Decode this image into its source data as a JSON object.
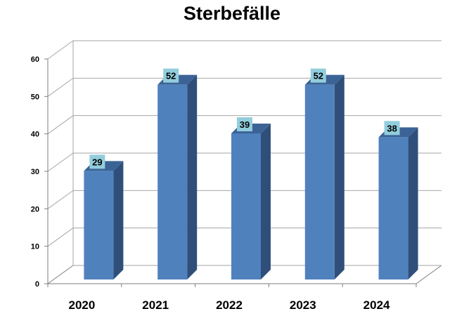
{
  "chart_data": {
    "type": "bar",
    "title": "Sterbefälle",
    "categories": [
      "2020",
      "2021",
      "2022",
      "2023",
      "2024"
    ],
    "values": [
      29,
      52,
      39,
      52,
      38
    ],
    "ylim": [
      0,
      60
    ],
    "yticks": [
      0,
      10,
      20,
      30,
      40,
      50,
      60
    ],
    "yticks_text": [
      "0",
      "10",
      "20",
      "30",
      "40",
      "50",
      "60"
    ],
    "xlabel": "",
    "ylabel": "",
    "grid": true,
    "legend": "none",
    "colors": {
      "bar_front": "#4F81BD",
      "bar_side": "#2F4F7A",
      "bar_top": "#3C6396",
      "label_bg": "#92CDDC",
      "grid": "#A6A6A6",
      "axis": "#7F7F7F"
    }
  }
}
